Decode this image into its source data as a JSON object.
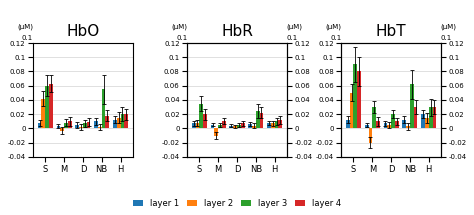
{
  "chart_data": [
    {
      "type": "bar",
      "title": "HbO",
      "categories": [
        "S",
        "M",
        "D",
        "NB",
        "H"
      ],
      "series": [
        {
          "name": "layer 1",
          "values": [
            0.008,
            0.003,
            0.005,
            0.01,
            0.012
          ],
          "errors": [
            0.004,
            0.003,
            0.004,
            0.005,
            0.005
          ]
        },
        {
          "name": "layer 2",
          "values": [
            0.042,
            -0.003,
            0.002,
            0.002,
            0.015
          ],
          "errors": [
            0.01,
            0.005,
            0.004,
            0.004,
            0.008
          ]
        },
        {
          "name": "layer 3",
          "values": [
            0.06,
            0.008,
            0.007,
            0.055,
            0.02
          ],
          "errors": [
            0.015,
            0.005,
            0.005,
            0.02,
            0.01
          ]
        },
        {
          "name": "layer 4",
          "values": [
            0.063,
            0.01,
            0.009,
            0.018,
            0.02
          ],
          "errors": [
            0.012,
            0.006,
            0.005,
            0.008,
            0.008
          ]
        }
      ],
      "ylim": [
        -0.04,
        0.12
      ],
      "yticks": [
        -0.04,
        -0.02,
        0,
        0.02,
        0.04,
        0.06,
        0.08,
        0.1,
        0.12
      ],
      "grid": true,
      "legend": "lower center",
      "annotations": [
        {
          "text": "(μM)"
        },
        {
          "text": "0.1"
        }
      ]
    },
    {
      "type": "bar",
      "title": "HbR",
      "categories": [
        "S",
        "M",
        "D",
        "NB",
        "H"
      ],
      "series": [
        {
          "name": "layer 1",
          "values": [
            0.007,
            0.005,
            0.004,
            0.006,
            0.008
          ],
          "errors": [
            0.003,
            0.002,
            0.002,
            0.003,
            0.003
          ]
        },
        {
          "name": "layer 2",
          "values": [
            0.008,
            -0.01,
            0.003,
            0.004,
            0.007
          ],
          "errors": [
            0.004,
            0.005,
            0.002,
            0.003,
            0.004
          ]
        },
        {
          "name": "layer 3",
          "values": [
            0.035,
            0.005,
            0.005,
            0.025,
            0.01
          ],
          "errors": [
            0.01,
            0.003,
            0.003,
            0.01,
            0.005
          ]
        },
        {
          "name": "layer 4",
          "values": [
            0.02,
            0.01,
            0.007,
            0.022,
            0.012
          ],
          "errors": [
            0.008,
            0.004,
            0.003,
            0.008,
            0.006
          ]
        }
      ],
      "ylim": [
        -0.04,
        0.12
      ],
      "yticks": [
        -0.04,
        -0.02,
        0,
        0.02,
        0.04,
        0.06,
        0.08,
        0.1,
        0.12
      ],
      "y2lim": [
        -0.04,
        0.12
      ],
      "y2ticks": [
        -0.04,
        -0.02,
        0,
        0.02,
        0.04,
        0.06,
        0.08,
        0.1,
        0.12
      ],
      "grid": true,
      "legend": "lower center",
      "annotations": [
        {
          "text": "(μM)"
        },
        {
          "text": "0.1"
        },
        {
          "text": "(μM)",
          "axis": "y2"
        },
        {
          "text": "0.1",
          "axis": "y2"
        }
      ]
    },
    {
      "type": "bar",
      "title": "HbT",
      "categories": [
        "S",
        "M",
        "D",
        "NB",
        "H"
      ],
      "series": [
        {
          "name": "layer 1",
          "values": [
            0.012,
            0.005,
            0.007,
            0.012,
            0.02
          ],
          "errors": [
            0.005,
            0.003,
            0.003,
            0.005,
            0.006
          ]
        },
        {
          "name": "layer 2",
          "values": [
            0.05,
            -0.02,
            0.005,
            0.003,
            0.015
          ],
          "errors": [
            0.012,
            0.008,
            0.004,
            0.005,
            0.007
          ]
        },
        {
          "name": "layer 3",
          "values": [
            0.09,
            0.03,
            0.02,
            0.062,
            0.03
          ],
          "errors": [
            0.025,
            0.008,
            0.006,
            0.02,
            0.012
          ]
        },
        {
          "name": "layer 4",
          "values": [
            0.08,
            0.01,
            0.01,
            0.03,
            0.03
          ],
          "errors": [
            0.02,
            0.006,
            0.005,
            0.01,
            0.01
          ]
        }
      ],
      "ylim": [
        -0.04,
        0.12
      ],
      "yticks": [
        -0.04,
        -0.02,
        0,
        0.02,
        0.04,
        0.06,
        0.08,
        0.1,
        0.12
      ],
      "y2lim": [
        -0.04,
        0.12
      ],
      "y2ticks": [
        -0.04,
        -0.02,
        0,
        0.02,
        0.04,
        0.06,
        0.08,
        0.1,
        0.12
      ],
      "grid": true,
      "legend": "lower center",
      "annotations": [
        {
          "text": "(μM)"
        },
        {
          "text": "0.1"
        },
        {
          "text": "(μM)",
          "axis": "y2"
        },
        {
          "text": "0.1",
          "axis": "y2"
        }
      ]
    }
  ]
}
